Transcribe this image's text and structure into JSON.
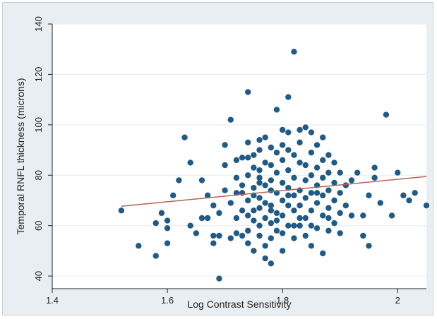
{
  "chart_data": {
    "type": "scatter",
    "xlabel": "Log Contrast Sensitivity",
    "ylabel": "Temporal RNFL thickness (microns)",
    "xlim": [
      1.4,
      2.05
    ],
    "ylim": [
      35,
      140
    ],
    "xticks": [
      1.4,
      1.6,
      1.8,
      2
    ],
    "xtick_labels": [
      "1.4",
      "1.6",
      "1.8",
      "2"
    ],
    "yticks": [
      40,
      60,
      80,
      100,
      120,
      140
    ],
    "ytick_labels": [
      "40",
      "60",
      "80",
      "100",
      "120",
      "140"
    ],
    "grid": "horizontal",
    "colors": {
      "points": "#1f5b86",
      "fit_line": "#b3625a",
      "plot_bg": "#ffffff",
      "outer_bg": "#e9eef2",
      "grid": "#e6ecef"
    },
    "fit_line": {
      "x": [
        1.52,
        2.05
      ],
      "y": [
        67.7,
        79.5
      ]
    },
    "points": [
      {
        "x": 1.52,
        "y": 66
      },
      {
        "x": 1.55,
        "y": 52
      },
      {
        "x": 1.58,
        "y": 48
      },
      {
        "x": 1.58,
        "y": 61
      },
      {
        "x": 1.59,
        "y": 65
      },
      {
        "x": 1.6,
        "y": 59
      },
      {
        "x": 1.6,
        "y": 62
      },
      {
        "x": 1.6,
        "y": 53
      },
      {
        "x": 1.61,
        "y": 72
      },
      {
        "x": 1.62,
        "y": 78
      },
      {
        "x": 1.63,
        "y": 95
      },
      {
        "x": 1.64,
        "y": 85
      },
      {
        "x": 1.64,
        "y": 60
      },
      {
        "x": 1.65,
        "y": 57
      },
      {
        "x": 1.66,
        "y": 63
      },
      {
        "x": 1.66,
        "y": 78
      },
      {
        "x": 1.67,
        "y": 72
      },
      {
        "x": 1.67,
        "y": 63
      },
      {
        "x": 1.68,
        "y": 56
      },
      {
        "x": 1.68,
        "y": 53
      },
      {
        "x": 1.69,
        "y": 39
      },
      {
        "x": 1.69,
        "y": 65
      },
      {
        "x": 1.7,
        "y": 74
      },
      {
        "x": 1.7,
        "y": 92
      },
      {
        "x": 1.71,
        "y": 102
      },
      {
        "x": 1.71,
        "y": 69
      },
      {
        "x": 1.71,
        "y": 55
      },
      {
        "x": 1.72,
        "y": 86
      },
      {
        "x": 1.72,
        "y": 79
      },
      {
        "x": 1.72,
        "y": 63
      },
      {
        "x": 1.72,
        "y": 57
      },
      {
        "x": 1.73,
        "y": 87
      },
      {
        "x": 1.73,
        "y": 73
      },
      {
        "x": 1.73,
        "y": 66
      },
      {
        "x": 1.73,
        "y": 56
      },
      {
        "x": 1.74,
        "y": 113
      },
      {
        "x": 1.74,
        "y": 93
      },
      {
        "x": 1.74,
        "y": 87
      },
      {
        "x": 1.74,
        "y": 80
      },
      {
        "x": 1.74,
        "y": 70
      },
      {
        "x": 1.74,
        "y": 64
      },
      {
        "x": 1.74,
        "y": 58
      },
      {
        "x": 1.74,
        "y": 53
      },
      {
        "x": 1.75,
        "y": 88
      },
      {
        "x": 1.75,
        "y": 83
      },
      {
        "x": 1.75,
        "y": 75
      },
      {
        "x": 1.75,
        "y": 72
      },
      {
        "x": 1.75,
        "y": 62
      },
      {
        "x": 1.75,
        "y": 50
      },
      {
        "x": 1.76,
        "y": 94
      },
      {
        "x": 1.76,
        "y": 90
      },
      {
        "x": 1.76,
        "y": 82
      },
      {
        "x": 1.76,
        "y": 77
      },
      {
        "x": 1.76,
        "y": 71
      },
      {
        "x": 1.76,
        "y": 67
      },
      {
        "x": 1.76,
        "y": 60
      },
      {
        "x": 1.76,
        "y": 56
      },
      {
        "x": 1.77,
        "y": 95
      },
      {
        "x": 1.77,
        "y": 85
      },
      {
        "x": 1.77,
        "y": 76
      },
      {
        "x": 1.77,
        "y": 69
      },
      {
        "x": 1.77,
        "y": 63
      },
      {
        "x": 1.77,
        "y": 52
      },
      {
        "x": 1.77,
        "y": 47
      },
      {
        "x": 1.78,
        "y": 91
      },
      {
        "x": 1.78,
        "y": 84
      },
      {
        "x": 1.78,
        "y": 78
      },
      {
        "x": 1.78,
        "y": 74
      },
      {
        "x": 1.78,
        "y": 68
      },
      {
        "x": 1.78,
        "y": 61
      },
      {
        "x": 1.78,
        "y": 55
      },
      {
        "x": 1.78,
        "y": 45
      },
      {
        "x": 1.79,
        "y": 106
      },
      {
        "x": 1.79,
        "y": 89
      },
      {
        "x": 1.79,
        "y": 81
      },
      {
        "x": 1.79,
        "y": 73
      },
      {
        "x": 1.79,
        "y": 65
      },
      {
        "x": 1.79,
        "y": 58
      },
      {
        "x": 1.8,
        "y": 98
      },
      {
        "x": 1.8,
        "y": 92
      },
      {
        "x": 1.8,
        "y": 86
      },
      {
        "x": 1.8,
        "y": 77
      },
      {
        "x": 1.8,
        "y": 70
      },
      {
        "x": 1.8,
        "y": 64
      },
      {
        "x": 1.8,
        "y": 57
      },
      {
        "x": 1.8,
        "y": 50
      },
      {
        "x": 1.81,
        "y": 111
      },
      {
        "x": 1.81,
        "y": 97
      },
      {
        "x": 1.81,
        "y": 90
      },
      {
        "x": 1.81,
        "y": 82
      },
      {
        "x": 1.81,
        "y": 75
      },
      {
        "x": 1.81,
        "y": 68
      },
      {
        "x": 1.81,
        "y": 60
      },
      {
        "x": 1.82,
        "y": 129
      },
      {
        "x": 1.82,
        "y": 88
      },
      {
        "x": 1.82,
        "y": 79
      },
      {
        "x": 1.82,
        "y": 72
      },
      {
        "x": 1.82,
        "y": 66
      },
      {
        "x": 1.82,
        "y": 55
      },
      {
        "x": 1.83,
        "y": 98
      },
      {
        "x": 1.83,
        "y": 93
      },
      {
        "x": 1.83,
        "y": 85
      },
      {
        "x": 1.83,
        "y": 74
      },
      {
        "x": 1.83,
        "y": 68
      },
      {
        "x": 1.83,
        "y": 60
      },
      {
        "x": 1.84,
        "y": 99
      },
      {
        "x": 1.84,
        "y": 84
      },
      {
        "x": 1.84,
        "y": 78
      },
      {
        "x": 1.84,
        "y": 71
      },
      {
        "x": 1.84,
        "y": 63
      },
      {
        "x": 1.84,
        "y": 56
      },
      {
        "x": 1.85,
        "y": 97
      },
      {
        "x": 1.85,
        "y": 89
      },
      {
        "x": 1.85,
        "y": 80
      },
      {
        "x": 1.85,
        "y": 73
      },
      {
        "x": 1.85,
        "y": 66
      },
      {
        "x": 1.85,
        "y": 52
      },
      {
        "x": 1.86,
        "y": 92
      },
      {
        "x": 1.86,
        "y": 83
      },
      {
        "x": 1.86,
        "y": 76
      },
      {
        "x": 1.86,
        "y": 69
      },
      {
        "x": 1.86,
        "y": 59
      },
      {
        "x": 1.87,
        "y": 95
      },
      {
        "x": 1.87,
        "y": 86
      },
      {
        "x": 1.87,
        "y": 79
      },
      {
        "x": 1.87,
        "y": 72
      },
      {
        "x": 1.87,
        "y": 64
      },
      {
        "x": 1.87,
        "y": 49
      },
      {
        "x": 1.88,
        "y": 88
      },
      {
        "x": 1.88,
        "y": 81
      },
      {
        "x": 1.88,
        "y": 74
      },
      {
        "x": 1.88,
        "y": 67
      },
      {
        "x": 1.88,
        "y": 58
      },
      {
        "x": 1.89,
        "y": 85
      },
      {
        "x": 1.89,
        "y": 77
      },
      {
        "x": 1.89,
        "y": 70
      },
      {
        "x": 1.89,
        "y": 61
      },
      {
        "x": 1.9,
        "y": 81
      },
      {
        "x": 1.9,
        "y": 73
      },
      {
        "x": 1.9,
        "y": 65
      },
      {
        "x": 1.9,
        "y": 57
      },
      {
        "x": 1.91,
        "y": 76
      },
      {
        "x": 1.91,
        "y": 68
      },
      {
        "x": 1.92,
        "y": 78
      },
      {
        "x": 1.92,
        "y": 64
      },
      {
        "x": 1.93,
        "y": 81
      },
      {
        "x": 1.94,
        "y": 56
      },
      {
        "x": 1.94,
        "y": 64
      },
      {
        "x": 1.95,
        "y": 72
      },
      {
        "x": 1.95,
        "y": 52
      },
      {
        "x": 1.96,
        "y": 83
      },
      {
        "x": 1.96,
        "y": 79
      },
      {
        "x": 1.97,
        "y": 69
      },
      {
        "x": 1.98,
        "y": 104
      },
      {
        "x": 1.99,
        "y": 64
      },
      {
        "x": 2.0,
        "y": 81
      },
      {
        "x": 2.01,
        "y": 72
      },
      {
        "x": 2.02,
        "y": 70
      },
      {
        "x": 2.03,
        "y": 73
      },
      {
        "x": 2.05,
        "y": 68
      },
      {
        "x": 1.69,
        "y": 56
      },
      {
        "x": 1.7,
        "y": 84
      },
      {
        "x": 1.73,
        "y": 76
      },
      {
        "x": 1.76,
        "y": 79
      },
      {
        "x": 1.79,
        "y": 62
      },
      {
        "x": 1.81,
        "y": 72
      },
      {
        "x": 1.83,
        "y": 63
      },
      {
        "x": 1.85,
        "y": 60
      },
      {
        "x": 1.86,
        "y": 73
      },
      {
        "x": 1.88,
        "y": 63
      },
      {
        "x": 1.82,
        "y": 60
      },
      {
        "x": 1.78,
        "y": 66
      },
      {
        "x": 1.75,
        "y": 66
      },
      {
        "x": 1.72,
        "y": 73
      },
      {
        "x": 1.68,
        "y": 68
      }
    ]
  }
}
